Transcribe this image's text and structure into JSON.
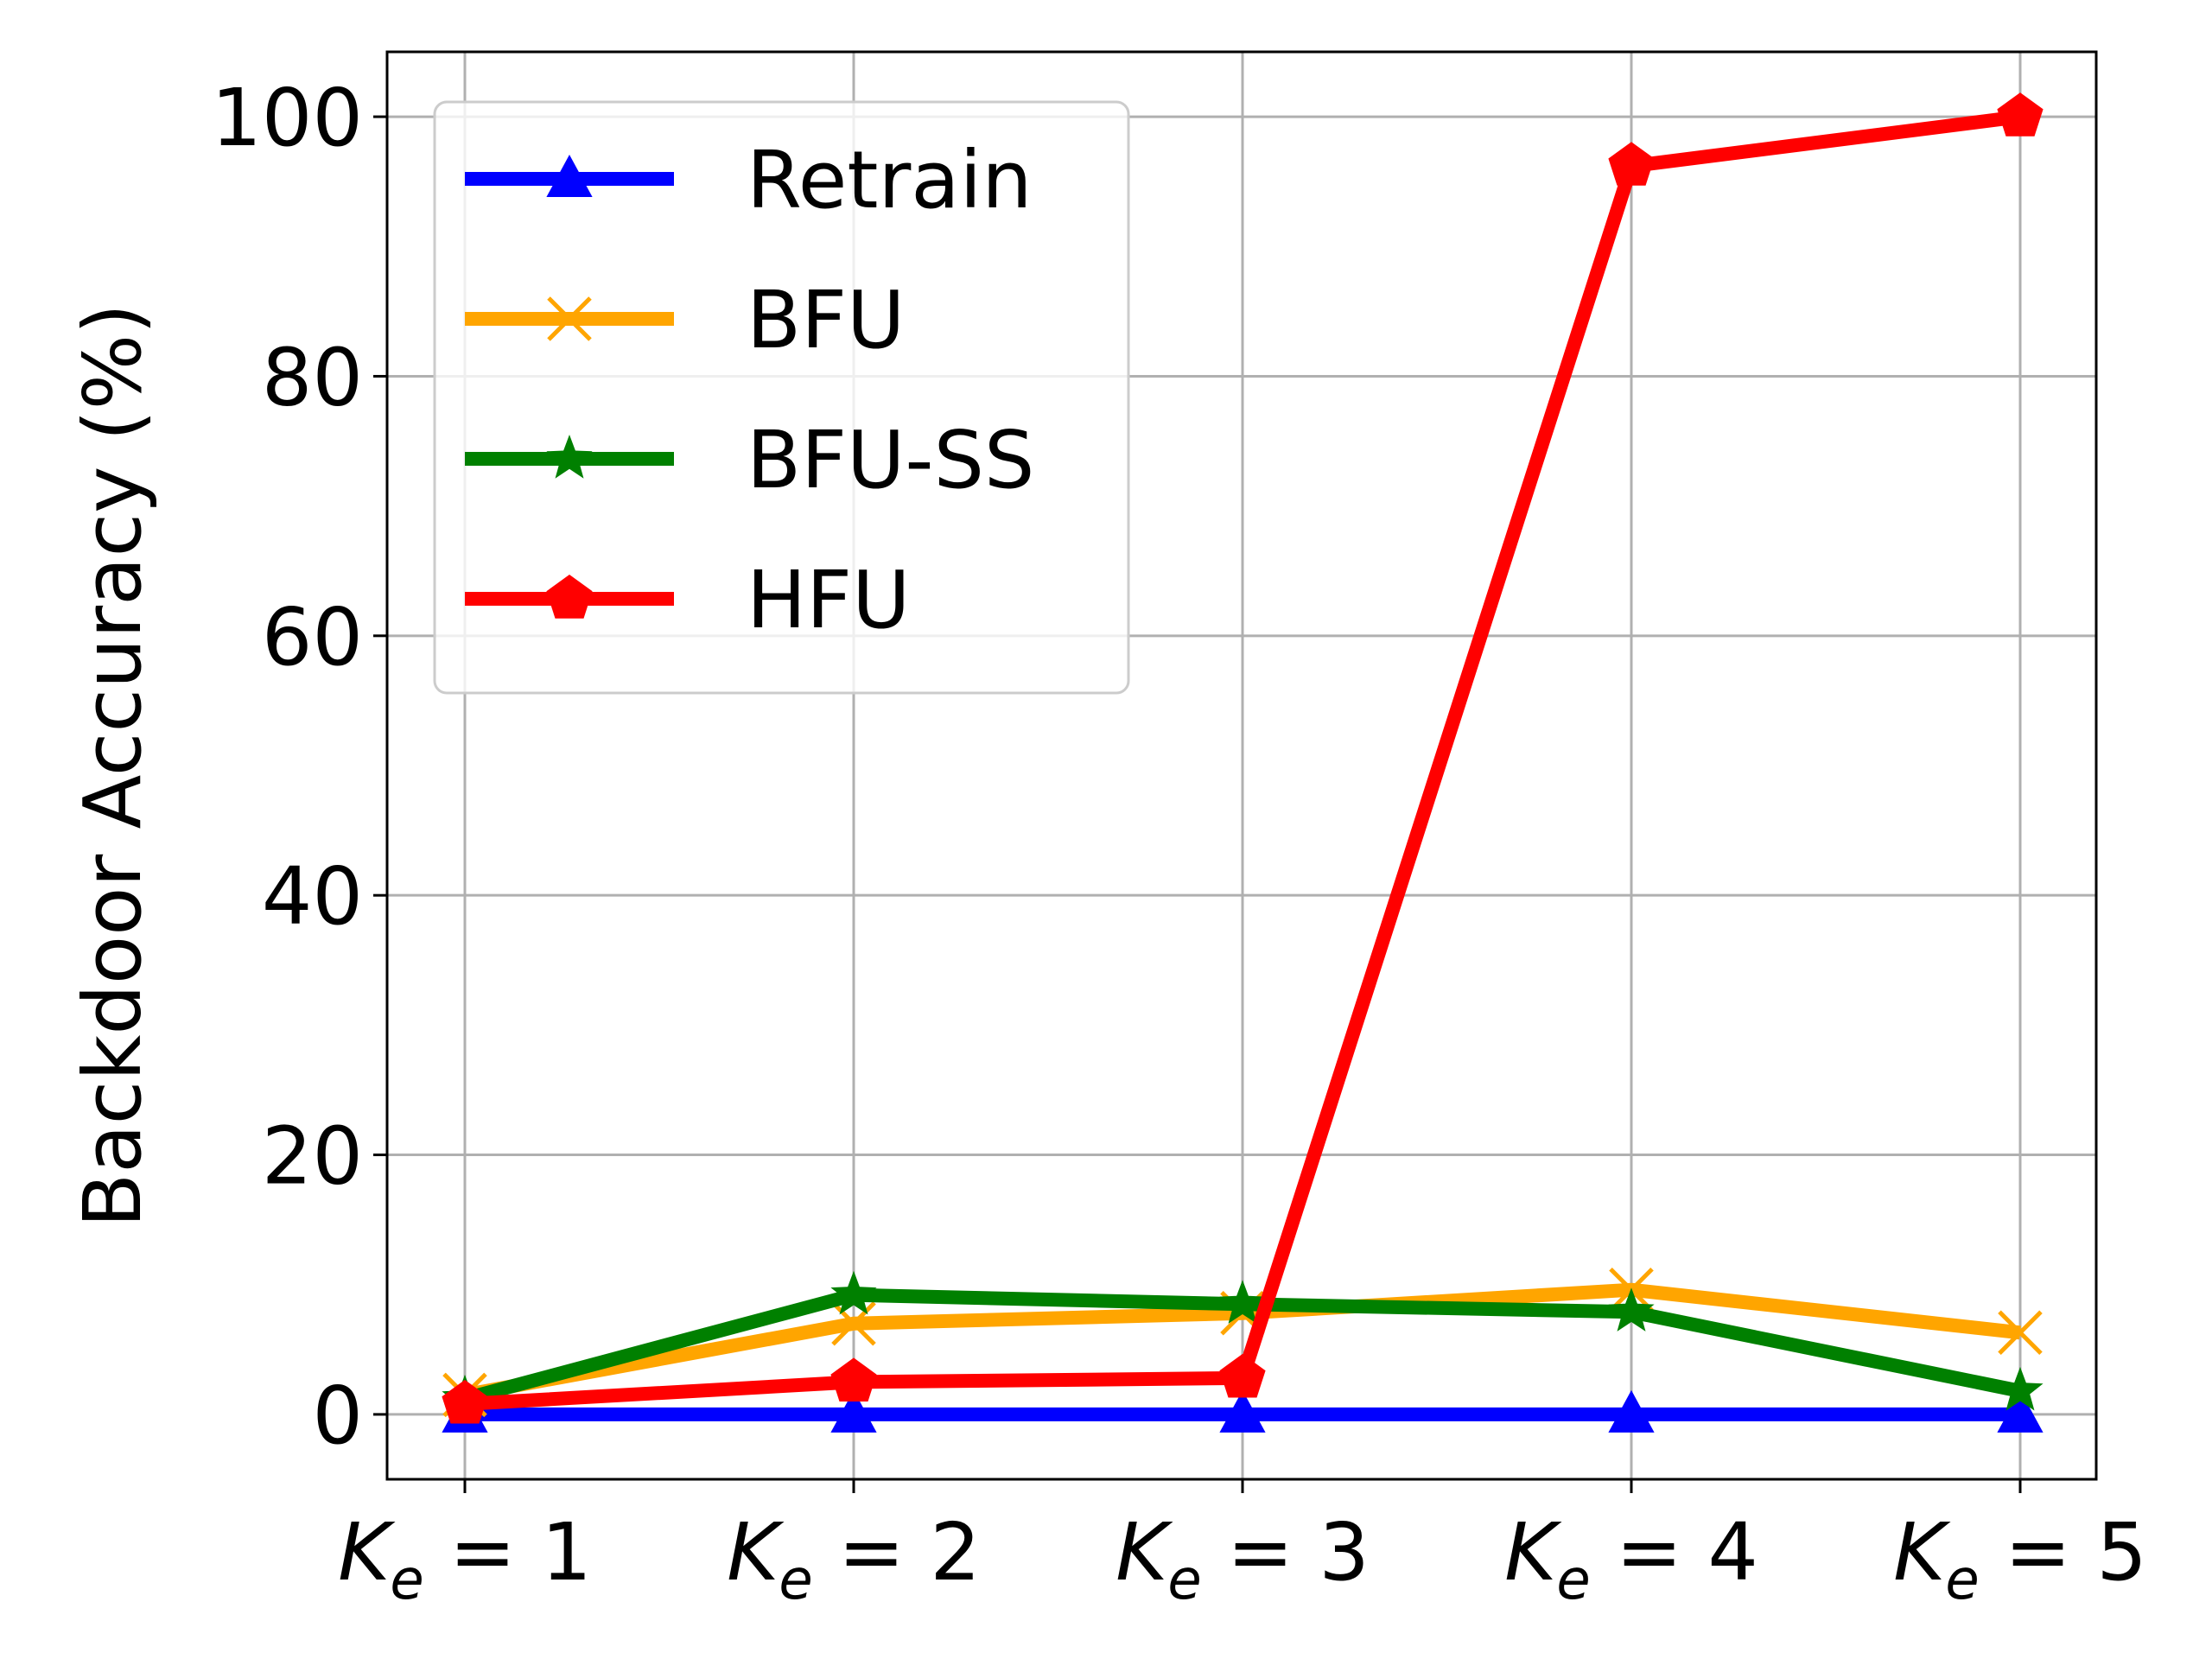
{
  "chart_data": {
    "type": "line",
    "title": "",
    "xlabel": "",
    "ylabel": "Backdoor Accuracy (%)",
    "categories": [
      {
        "main": "K",
        "sub": "e",
        "rest": " = 1"
      },
      {
        "main": "K",
        "sub": "e",
        "rest": " = 2"
      },
      {
        "main": "K",
        "sub": "e",
        "rest": " = 3"
      },
      {
        "main": "K",
        "sub": "e",
        "rest": " = 4"
      },
      {
        "main": "K",
        "sub": "e",
        "rest": " = 5"
      }
    ],
    "ylim": [
      -5,
      105
    ],
    "yticks": [
      0,
      20,
      40,
      60,
      80,
      100
    ],
    "grid": true,
    "legend_position": "top-left",
    "series": [
      {
        "name": "Retrain",
        "color": "#0000ff",
        "marker": "triangle",
        "values": [
          0,
          0,
          0,
          0,
          0
        ]
      },
      {
        "name": "BFU",
        "color": "#ffa500",
        "marker": "x",
        "values": [
          1.5,
          7.0,
          7.8,
          9.6,
          6.3
        ]
      },
      {
        "name": "BFU-SS",
        "color": "#008000",
        "marker": "star",
        "values": [
          1.2,
          9.2,
          8.5,
          7.9,
          1.8
        ]
      },
      {
        "name": "HFU",
        "color": "#ff0000",
        "marker": "pentagon",
        "values": [
          0.8,
          2.5,
          2.8,
          96.2,
          100.0
        ]
      }
    ]
  }
}
